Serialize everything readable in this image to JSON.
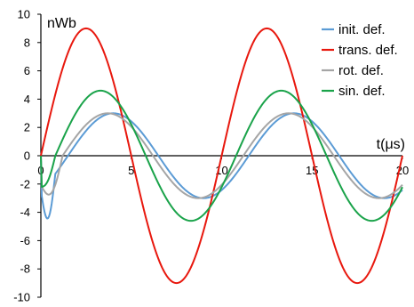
{
  "chart_data": {
    "type": "line",
    "xlabel": "t(μs)",
    "ylabel": "nWb",
    "xlim": [
      0,
      20
    ],
    "ylim": [
      -10,
      10
    ],
    "x_ticks": [
      0,
      5,
      10,
      15,
      20
    ],
    "y_ticks": [
      -10,
      -8,
      -6,
      -4,
      -2,
      0,
      2,
      4,
      6,
      8,
      10
    ],
    "grid": false,
    "legend_position": "top-right",
    "series": [
      {
        "name": "init. def.",
        "color": "#5b9bd5",
        "model": {
          "amp": 3.0,
          "period": 10.0,
          "offset_x": 1.5,
          "pulse_amp": 2.5,
          "pulse_width": 0.8
        },
        "values": [
          [
            0,
            0
          ],
          [
            0.5,
            -1.8
          ],
          [
            1,
            -2.3
          ],
          [
            1.5,
            -2.2
          ],
          [
            2,
            -1.8
          ],
          [
            3,
            -0.4
          ],
          [
            4,
            1.4
          ],
          [
            5,
            2.6
          ],
          [
            5.8,
            3.0
          ],
          [
            6.5,
            2.8
          ],
          [
            7,
            2.2
          ],
          [
            8,
            0.6
          ],
          [
            9,
            -1.2
          ],
          [
            10,
            -2.6
          ],
          [
            10.8,
            -3.0
          ],
          [
            11.5,
            -2.8
          ],
          [
            12,
            -2.2
          ],
          [
            13,
            -0.6
          ],
          [
            14,
            1.2
          ],
          [
            15,
            2.6
          ],
          [
            15.8,
            3.0
          ],
          [
            16.5,
            2.8
          ],
          [
            17,
            2.2
          ],
          [
            18,
            0.6
          ],
          [
            19,
            -1.2
          ],
          [
            20,
            -2.7
          ]
        ]
      },
      {
        "name": "trans. def.",
        "color": "#e8180e",
        "model": {
          "amp": 9.0,
          "period": 10.0,
          "offset_x": 0.0
        },
        "values": [
          [
            0,
            0
          ],
          [
            1,
            5.3
          ],
          [
            2,
            8.6
          ],
          [
            2.5,
            9.0
          ],
          [
            3,
            8.6
          ],
          [
            4,
            5.3
          ],
          [
            5,
            0
          ],
          [
            6,
            -5.3
          ],
          [
            7,
            -8.6
          ],
          [
            7.5,
            -9.0
          ],
          [
            8,
            -8.6
          ],
          [
            9,
            -5.3
          ],
          [
            10,
            0
          ],
          [
            11,
            5.3
          ],
          [
            12,
            8.6
          ],
          [
            12.5,
            9.0
          ],
          [
            13,
            8.6
          ],
          [
            14,
            5.3
          ],
          [
            15,
            0
          ],
          [
            16,
            -5.3
          ],
          [
            17,
            -8.6
          ],
          [
            17.5,
            -9.0
          ],
          [
            18,
            -8.6
          ],
          [
            19,
            -5.3
          ],
          [
            20,
            -3.0
          ]
        ]
      },
      {
        "name": "rot. def.",
        "color": "#a5a5a5",
        "model": {
          "amp": 3.0,
          "period": 10.0,
          "offset_x": 1.2,
          "pulse_amp": 1.5,
          "pulse_width": 1.2
        },
        "values": [
          [
            0,
            0
          ],
          [
            1,
            -1.3
          ],
          [
            1.7,
            -1.5
          ],
          [
            2.5,
            -0.6
          ],
          [
            3.5,
            1.3
          ],
          [
            4.5,
            2.6
          ],
          [
            5.2,
            3.0
          ],
          [
            6,
            2.6
          ],
          [
            7,
            1.0
          ],
          [
            8,
            -1.0
          ],
          [
            9,
            -2.6
          ],
          [
            10,
            -3.0
          ],
          [
            11,
            -2.5
          ],
          [
            12,
            -1.0
          ],
          [
            13,
            1.0
          ],
          [
            14,
            2.6
          ],
          [
            15,
            3.0
          ],
          [
            16,
            2.5
          ],
          [
            17,
            1.0
          ],
          [
            18,
            -1.0
          ],
          [
            19,
            -2.5
          ],
          [
            20,
            -3.0
          ]
        ]
      },
      {
        "name": "sin. def.",
        "color": "#1aa34a",
        "model": {
          "amp": 4.6,
          "period": 10.0,
          "offset_x": 0.8,
          "pulse_amp": 0.6,
          "pulse_width": 0.8
        },
        "values": [
          [
            0,
            0
          ],
          [
            0.5,
            -0.4
          ],
          [
            1,
            0.3
          ],
          [
            2,
            3.0
          ],
          [
            3,
            4.5
          ],
          [
            3.5,
            4.6
          ],
          [
            4,
            4.4
          ],
          [
            5,
            2.8
          ],
          [
            6,
            -0.2
          ],
          [
            7,
            -3.0
          ],
          [
            8,
            -4.5
          ],
          [
            8.5,
            -4.6
          ],
          [
            9,
            -4.4
          ],
          [
            10,
            -2.8
          ],
          [
            11,
            0.2
          ],
          [
            12,
            3.0
          ],
          [
            13,
            4.5
          ],
          [
            13.5,
            4.6
          ],
          [
            14,
            4.4
          ],
          [
            15,
            2.8
          ],
          [
            16,
            -0.2
          ],
          [
            17,
            -3.0
          ],
          [
            18,
            -4.5
          ],
          [
            18.5,
            -4.6
          ],
          [
            19,
            -4.4
          ],
          [
            20,
            -2.8
          ]
        ]
      }
    ]
  }
}
